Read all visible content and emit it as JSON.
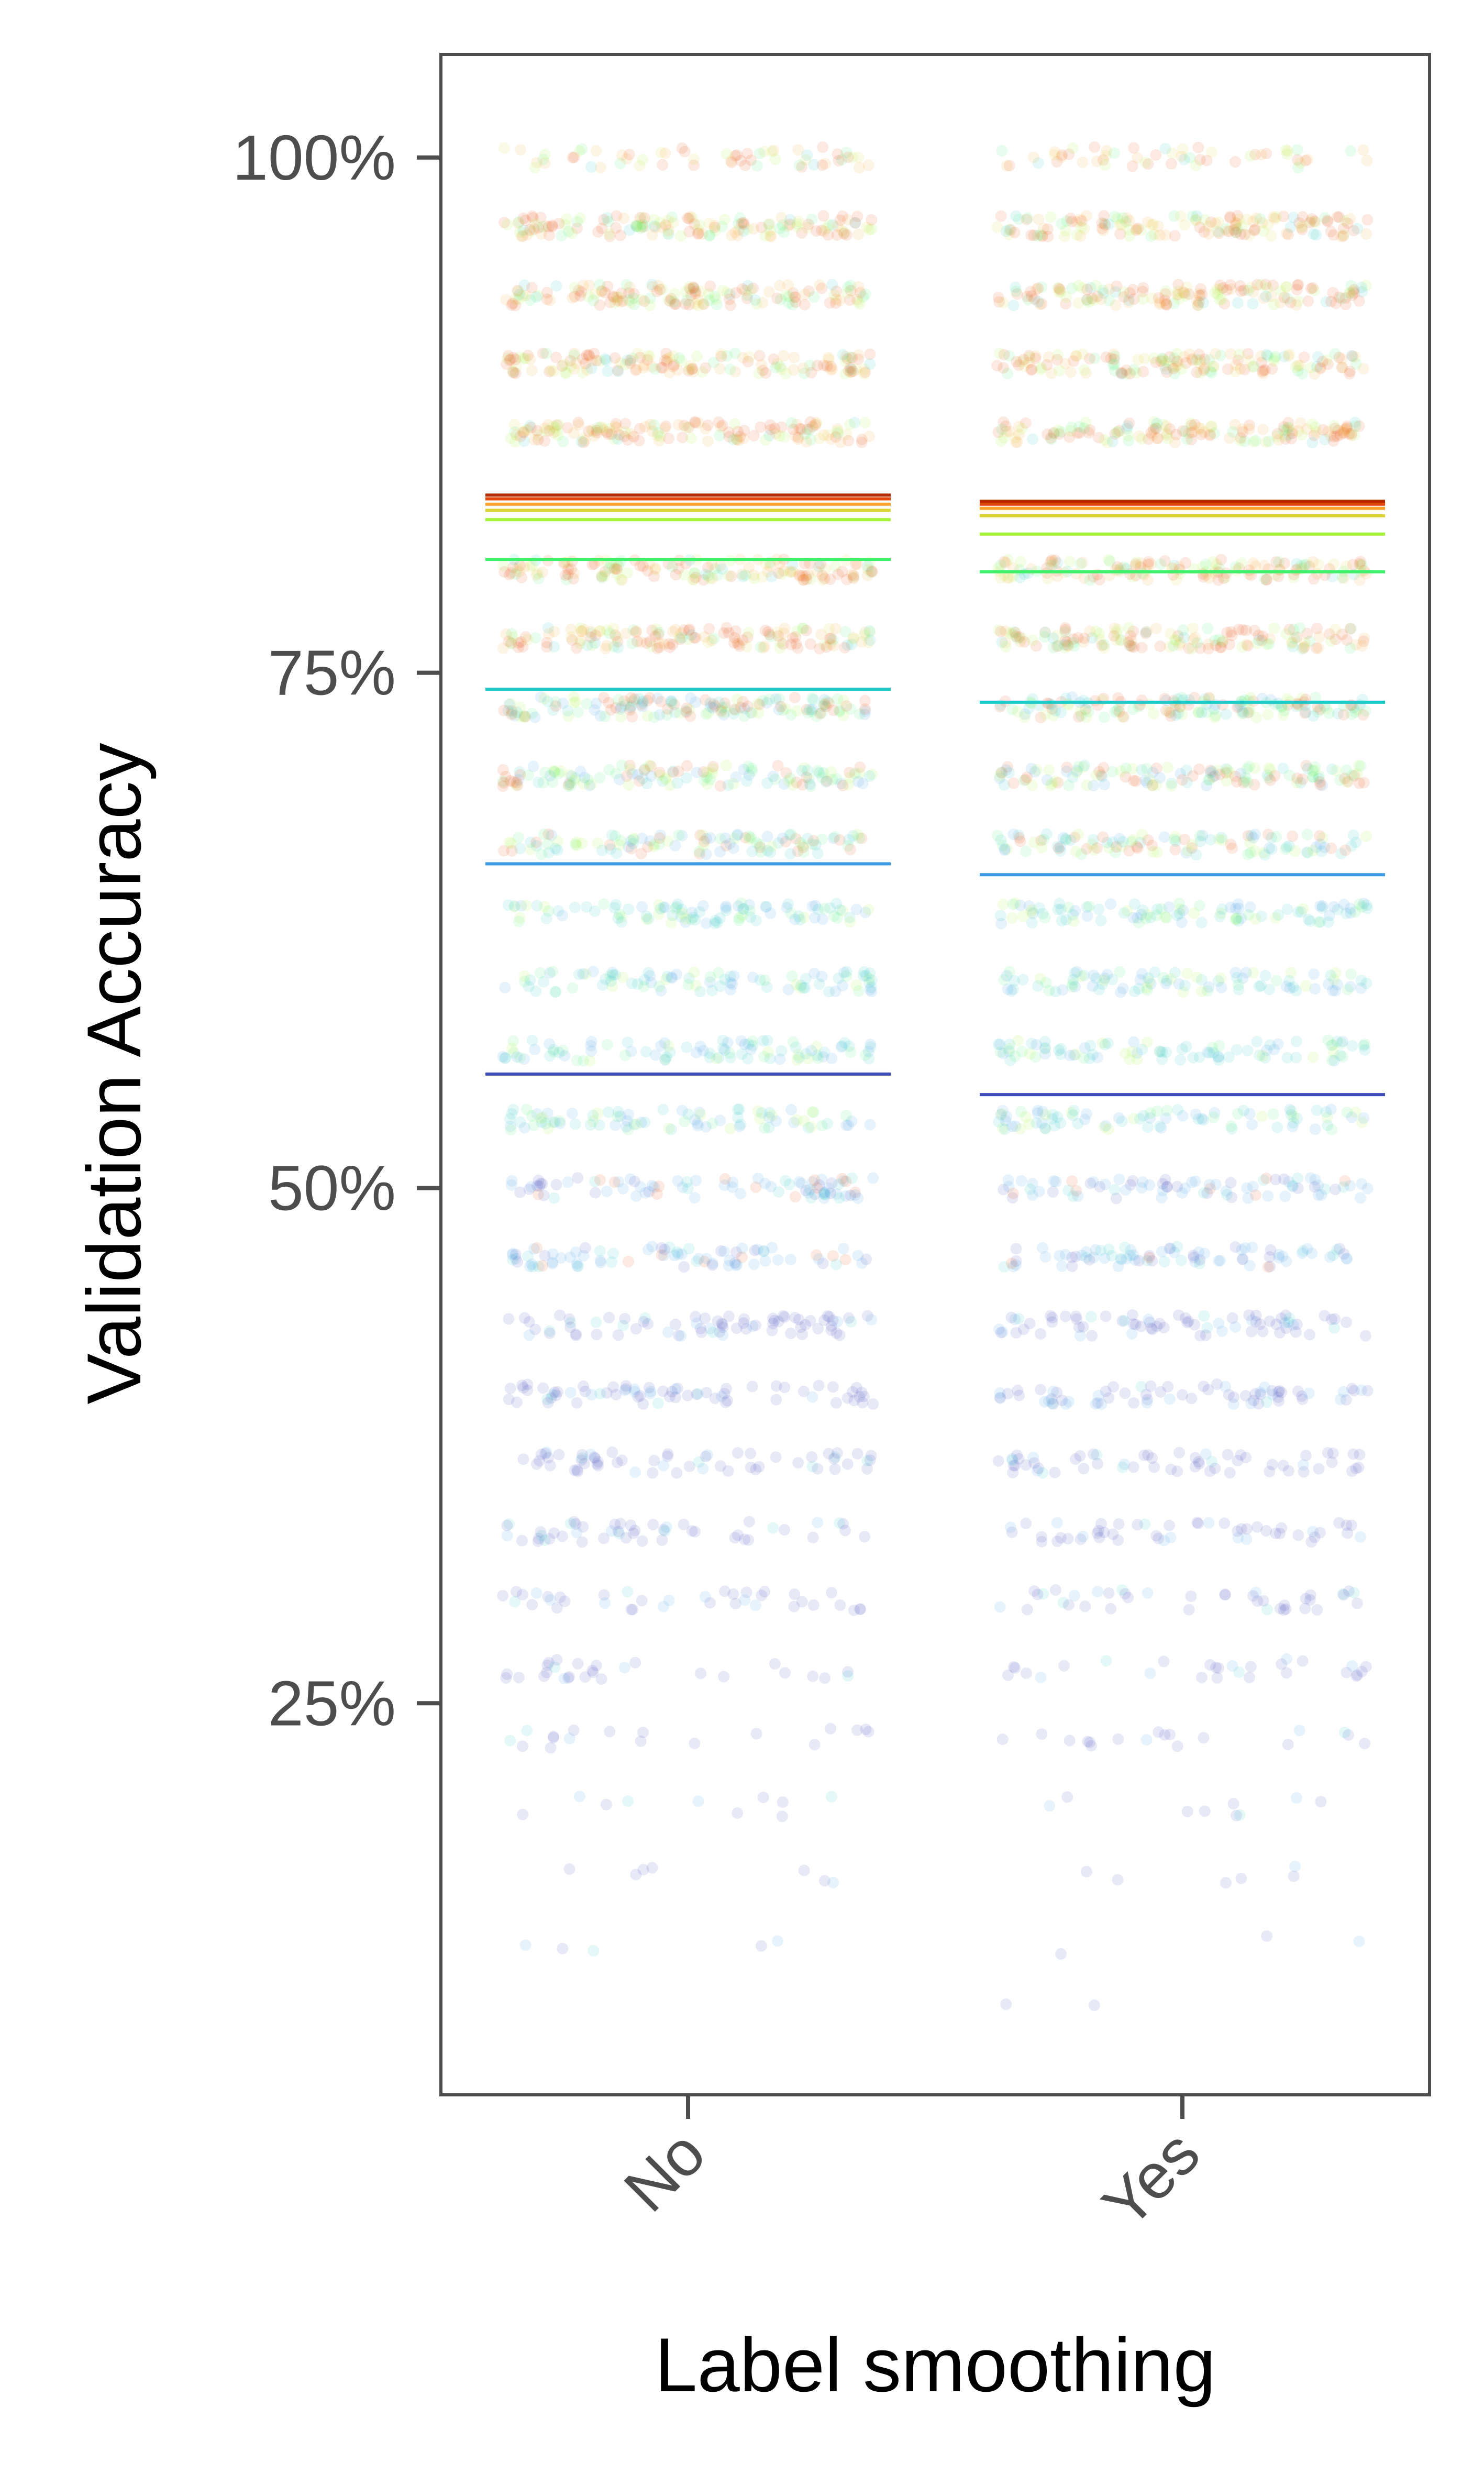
{
  "chart_data": {
    "type": "scatter",
    "title": "",
    "xlabel": "Label smoothing",
    "ylabel": "Validation Accuracy",
    "categories": [
      "No",
      "Yes"
    ],
    "ylim": [
      0.06,
      1.05
    ],
    "yticks": [
      {
        "value": 0.25,
        "label": "25%"
      },
      {
        "value": 0.5,
        "label": "50%"
      },
      {
        "value": 0.75,
        "label": "75%"
      },
      {
        "value": 1.0,
        "label": "100%"
      }
    ],
    "grid": false,
    "legend": "none",
    "point_alpha": 0.12,
    "levels": [
      {
        "value": 1.0,
        "No": 60,
        "Yes": 55
      },
      {
        "value": 0.9667,
        "No": 150,
        "Yes": 150
      },
      {
        "value": 0.9333,
        "No": 150,
        "Yes": 150
      },
      {
        "value": 0.9,
        "No": 150,
        "Yes": 150
      },
      {
        "value": 0.8667,
        "No": 150,
        "Yes": 150
      },
      {
        "value": 0.8,
        "No": 150,
        "Yes": 150
      },
      {
        "value": 0.7667,
        "No": 150,
        "Yes": 150
      },
      {
        "value": 0.7333,
        "No": 150,
        "Yes": 150
      },
      {
        "value": 0.7,
        "No": 130,
        "Yes": 130
      },
      {
        "value": 0.6667,
        "No": 110,
        "Yes": 110
      },
      {
        "value": 0.6333,
        "No": 95,
        "Yes": 100
      },
      {
        "value": 0.6,
        "No": 90,
        "Yes": 95
      },
      {
        "value": 0.5667,
        "No": 90,
        "Yes": 90
      },
      {
        "value": 0.5333,
        "No": 85,
        "Yes": 85
      },
      {
        "value": 0.5,
        "No": 85,
        "Yes": 80
      },
      {
        "value": 0.4667,
        "No": 80,
        "Yes": 80
      },
      {
        "value": 0.4333,
        "No": 75,
        "Yes": 75
      },
      {
        "value": 0.4,
        "No": 70,
        "Yes": 70
      },
      {
        "value": 0.3667,
        "No": 60,
        "Yes": 60
      },
      {
        "value": 0.3333,
        "No": 50,
        "Yes": 50
      },
      {
        "value": 0.3,
        "No": 38,
        "Yes": 40
      },
      {
        "value": 0.2667,
        "No": 28,
        "Yes": 28
      },
      {
        "value": 0.2333,
        "No": 18,
        "Yes": 18
      },
      {
        "value": 0.2,
        "No": 10,
        "Yes": 9
      },
      {
        "value": 0.1667,
        "No": 7,
        "Yes": 6
      },
      {
        "value": 0.1333,
        "No": 5,
        "Yes": 3
      },
      {
        "value": 0.1,
        "No": 0,
        "Yes": 2
      }
    ],
    "series": [
      {
        "color": "#b22c00",
        "No": 0.8362,
        "Yes": 0.8332
      },
      {
        "color": "#e4460a",
        "No": 0.8344,
        "Yes": 0.8318
      },
      {
        "color": "#f9a12a",
        "No": 0.8318,
        "Yes": 0.8298
      },
      {
        "color": "#dbd234",
        "No": 0.8288,
        "Yes": 0.8262
      },
      {
        "color": "#a4f33a",
        "No": 0.8243,
        "Yes": 0.8173
      },
      {
        "color": "#3ef06a",
        "No": 0.805,
        "Yes": 0.799
      },
      {
        "color": "#1fc8c4",
        "No": 0.742,
        "Yes": 0.7357
      },
      {
        "color": "#3c9be4",
        "No": 0.6573,
        "Yes": 0.652
      },
      {
        "color": "#3f4dbb",
        "No": 0.5553,
        "Yes": 0.5453
      }
    ]
  }
}
